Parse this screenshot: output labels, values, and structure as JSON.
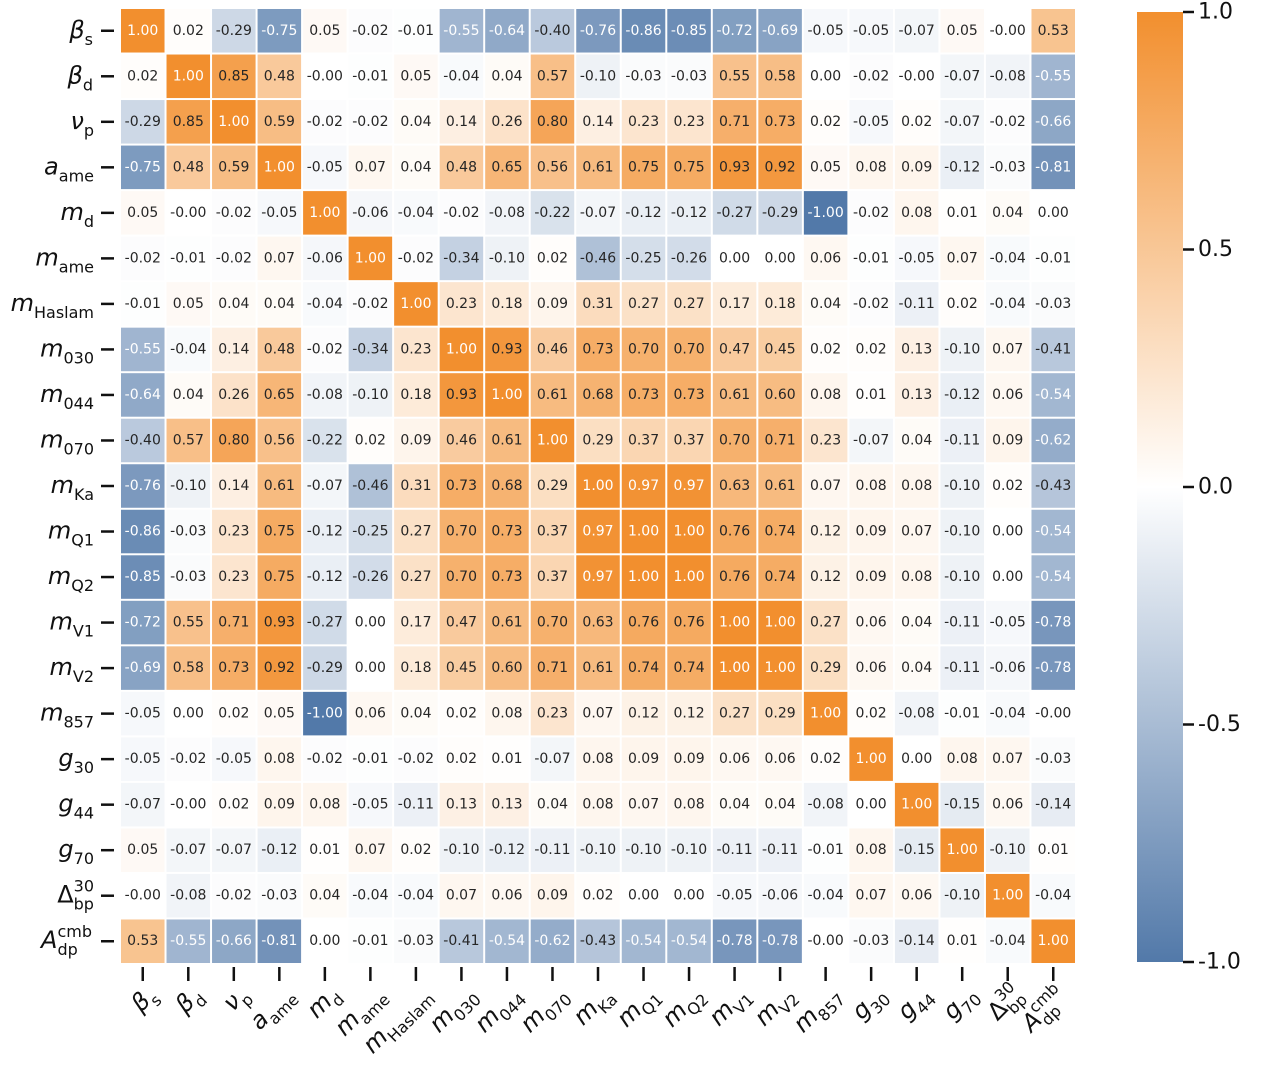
{
  "chart_data": {
    "type": "heatmap",
    "labels": [
      {
        "main": "β",
        "sub": "s"
      },
      {
        "main": "β",
        "sub": "d"
      },
      {
        "main": "ν",
        "sub": "p"
      },
      {
        "main": "a",
        "sub": "ame"
      },
      {
        "main": "m",
        "sub": "d"
      },
      {
        "main": "m",
        "sub": "ame"
      },
      {
        "main": "m",
        "sub": "Haslam"
      },
      {
        "main": "m",
        "sub": "030"
      },
      {
        "main": "m",
        "sub": "044"
      },
      {
        "main": "m",
        "sub": "070"
      },
      {
        "main": "m",
        "sub": "Ka"
      },
      {
        "main": "m",
        "sub": "Q1"
      },
      {
        "main": "m",
        "sub": "Q2"
      },
      {
        "main": "m",
        "sub": "V1"
      },
      {
        "main": "m",
        "sub": "V2"
      },
      {
        "main": "m",
        "sub": "857"
      },
      {
        "main": "g",
        "sub": "30"
      },
      {
        "main": "g",
        "sub": "44"
      },
      {
        "main": "g",
        "sub": "70"
      },
      {
        "main": "Δ",
        "sub": "bp",
        "sup": "30"
      },
      {
        "main": "A",
        "sub": "dp",
        "sup": "cmb"
      }
    ],
    "values": [
      [
        1,
        0.02,
        -0.29,
        -0.75,
        0.05,
        -0.02,
        -0.01,
        -0.55,
        -0.64,
        -0.4,
        -0.76,
        -0.86,
        -0.85,
        -0.72,
        -0.69,
        -0.05,
        -0.05,
        -0.07,
        0.05,
        0,
        0.53
      ],
      [
        0.02,
        1,
        0.85,
        0.48,
        0,
        -0.01,
        0.05,
        -0.04,
        0.04,
        0.57,
        -0.1,
        -0.03,
        -0.03,
        0.55,
        0.58,
        0,
        -0.02,
        0,
        -0.07,
        -0.08,
        -0.55
      ],
      [
        -0.29,
        0.85,
        1,
        0.59,
        -0.02,
        -0.02,
        0.04,
        0.14,
        0.26,
        0.8,
        0.14,
        0.23,
        0.23,
        0.71,
        0.73,
        0.02,
        -0.05,
        0.02,
        -0.07,
        -0.02,
        -0.66
      ],
      [
        -0.75,
        0.48,
        0.59,
        1,
        -0.05,
        0.07,
        0.04,
        0.48,
        0.65,
        0.56,
        0.61,
        0.75,
        0.75,
        0.93,
        0.92,
        0.05,
        0.08,
        0.09,
        -0.12,
        -0.03,
        -0.81
      ],
      [
        0.05,
        0,
        -0.02,
        -0.05,
        1,
        -0.06,
        -0.04,
        -0.02,
        -0.08,
        -0.22,
        -0.07,
        -0.12,
        -0.12,
        -0.27,
        -0.29,
        -1,
        -0.02,
        0.08,
        0.01,
        0.04,
        0
      ],
      [
        -0.02,
        -0.01,
        -0.02,
        0.07,
        -0.06,
        1,
        -0.02,
        -0.34,
        -0.1,
        0.02,
        -0.46,
        -0.25,
        -0.26,
        0,
        0,
        0.06,
        -0.01,
        -0.05,
        0.07,
        -0.04,
        -0.01
      ],
      [
        -0.01,
        0.05,
        0.04,
        0.04,
        -0.04,
        -0.02,
        1,
        0.23,
        0.18,
        0.09,
        0.31,
        0.27,
        0.27,
        0.17,
        0.18,
        0.04,
        -0.02,
        -0.11,
        0.02,
        -0.04,
        -0.03
      ],
      [
        -0.55,
        -0.04,
        0.14,
        0.48,
        -0.02,
        -0.34,
        0.23,
        1,
        0.93,
        0.46,
        0.73,
        0.7,
        0.7,
        0.47,
        0.45,
        0.02,
        0.02,
        0.13,
        -0.1,
        0.07,
        -0.41
      ],
      [
        -0.64,
        0.04,
        0.26,
        0.65,
        -0.08,
        -0.1,
        0.18,
        0.93,
        1,
        0.61,
        0.68,
        0.73,
        0.73,
        0.61,
        0.6,
        0.08,
        0.01,
        0.13,
        -0.12,
        0.06,
        -0.54
      ],
      [
        -0.4,
        0.57,
        0.8,
        0.56,
        -0.22,
        0.02,
        0.09,
        0.46,
        0.61,
        1,
        0.29,
        0.37,
        0.37,
        0.7,
        0.71,
        0.23,
        -0.07,
        0.04,
        -0.11,
        0.09,
        -0.62
      ],
      [
        -0.76,
        -0.1,
        0.14,
        0.61,
        -0.07,
        -0.46,
        0.31,
        0.73,
        0.68,
        0.29,
        1,
        0.97,
        0.97,
        0.63,
        0.61,
        0.07,
        0.08,
        0.08,
        -0.1,
        0.02,
        -0.43
      ],
      [
        -0.86,
        -0.03,
        0.23,
        0.75,
        -0.12,
        -0.25,
        0.27,
        0.7,
        0.73,
        0.37,
        0.97,
        1,
        1,
        0.76,
        0.74,
        0.12,
        0.09,
        0.07,
        -0.1,
        0,
        -0.54
      ],
      [
        -0.85,
        -0.03,
        0.23,
        0.75,
        -0.12,
        -0.26,
        0.27,
        0.7,
        0.73,
        0.37,
        0.97,
        1,
        1,
        0.76,
        0.74,
        0.12,
        0.09,
        0.08,
        -0.1,
        0,
        -0.54
      ],
      [
        -0.72,
        0.55,
        0.71,
        0.93,
        -0.27,
        0,
        0.17,
        0.47,
        0.61,
        0.7,
        0.63,
        0.76,
        0.76,
        1,
        1,
        0.27,
        0.06,
        0.04,
        -0.11,
        -0.05,
        -0.78
      ],
      [
        -0.69,
        0.58,
        0.73,
        0.92,
        -0.29,
        0,
        0.18,
        0.45,
        0.6,
        0.71,
        0.61,
        0.74,
        0.74,
        1,
        1,
        0.29,
        0.06,
        0.04,
        -0.11,
        -0.06,
        -0.78
      ],
      [
        -0.05,
        0,
        0.02,
        0.05,
        -1,
        0.06,
        0.04,
        0.02,
        0.08,
        0.23,
        0.07,
        0.12,
        0.12,
        0.27,
        0.29,
        1,
        0.02,
        -0.08,
        -0.01,
        -0.04,
        0
      ],
      [
        -0.05,
        -0.02,
        -0.05,
        0.08,
        -0.02,
        -0.01,
        -0.02,
        0.02,
        0.01,
        -0.07,
        0.08,
        0.09,
        0.09,
        0.06,
        0.06,
        0.02,
        1,
        0,
        0.08,
        0.07,
        -0.03
      ],
      [
        -0.07,
        0,
        0.02,
        0.09,
        0.08,
        -0.05,
        -0.11,
        0.13,
        0.13,
        0.04,
        0.08,
        0.07,
        0.08,
        0.04,
        0.04,
        -0.08,
        0,
        1,
        -0.15,
        0.06,
        -0.14
      ],
      [
        0.05,
        -0.07,
        -0.07,
        -0.12,
        0.01,
        0.07,
        0.02,
        -0.1,
        -0.12,
        -0.11,
        -0.1,
        -0.1,
        -0.1,
        -0.11,
        -0.11,
        -0.01,
        0.08,
        -0.15,
        1,
        -0.1,
        0.01
      ],
      [
        0,
        -0.08,
        -0.02,
        -0.03,
        0.04,
        -0.04,
        -0.04,
        0.07,
        0.06,
        0.09,
        0.02,
        0,
        0,
        -0.05,
        -0.06,
        -0.04,
        0.07,
        0.06,
        -0.1,
        1,
        -0.04
      ],
      [
        0.53,
        -0.55,
        -0.66,
        -0.81,
        0,
        -0.01,
        -0.03,
        -0.41,
        -0.54,
        -0.62,
        -0.43,
        -0.54,
        -0.54,
        -0.78,
        -0.78,
        0,
        -0.03,
        -0.14,
        0.01,
        -0.04,
        1
      ]
    ],
    "value_labels": [
      [
        "1.00",
        "0.02",
        "-0.29",
        "-0.75",
        "0.05",
        "-0.02",
        "-0.01",
        "-0.55",
        "-0.64",
        "-0.40",
        "-0.76",
        "-0.86",
        "-0.85",
        "-0.72",
        "-0.69",
        "-0.05",
        "-0.05",
        "-0.07",
        "0.05",
        "-0.00",
        "0.53"
      ],
      [
        "0.02",
        "1.00",
        "0.85",
        "0.48",
        "-0.00",
        "-0.01",
        "0.05",
        "-0.04",
        "0.04",
        "0.57",
        "-0.10",
        "-0.03",
        "-0.03",
        "0.55",
        "0.58",
        "0.00",
        "-0.02",
        "-0.00",
        "-0.07",
        "-0.08",
        "-0.55"
      ],
      [
        "-0.29",
        "0.85",
        "1.00",
        "0.59",
        "-0.02",
        "-0.02",
        "0.04",
        "0.14",
        "0.26",
        "0.80",
        "0.14",
        "0.23",
        "0.23",
        "0.71",
        "0.73",
        "0.02",
        "-0.05",
        "0.02",
        "-0.07",
        "-0.02",
        "-0.66"
      ],
      [
        "-0.75",
        "0.48",
        "0.59",
        "1.00",
        "-0.05",
        "0.07",
        "0.04",
        "0.48",
        "0.65",
        "0.56",
        "0.61",
        "0.75",
        "0.75",
        "0.93",
        "0.92",
        "0.05",
        "0.08",
        "0.09",
        "-0.12",
        "-0.03",
        "-0.81"
      ],
      [
        "0.05",
        "-0.00",
        "-0.02",
        "-0.05",
        "1.00",
        "-0.06",
        "-0.04",
        "-0.02",
        "-0.08",
        "-0.22",
        "-0.07",
        "-0.12",
        "-0.12",
        "-0.27",
        "-0.29",
        "-1.00",
        "-0.02",
        "0.08",
        "0.01",
        "0.04",
        "0.00"
      ],
      [
        "-0.02",
        "-0.01",
        "-0.02",
        "0.07",
        "-0.06",
        "1.00",
        "-0.02",
        "-0.34",
        "-0.10",
        "0.02",
        "-0.46",
        "-0.25",
        "-0.26",
        "0.00",
        "0.00",
        "0.06",
        "-0.01",
        "-0.05",
        "0.07",
        "-0.04",
        "-0.01"
      ],
      [
        "-0.01",
        "0.05",
        "0.04",
        "0.04",
        "-0.04",
        "-0.02",
        "1.00",
        "0.23",
        "0.18",
        "0.09",
        "0.31",
        "0.27",
        "0.27",
        "0.17",
        "0.18",
        "0.04",
        "-0.02",
        "-0.11",
        "0.02",
        "-0.04",
        "-0.03"
      ],
      [
        "-0.55",
        "-0.04",
        "0.14",
        "0.48",
        "-0.02",
        "-0.34",
        "0.23",
        "1.00",
        "0.93",
        "0.46",
        "0.73",
        "0.70",
        "0.70",
        "0.47",
        "0.45",
        "0.02",
        "0.02",
        "0.13",
        "-0.10",
        "0.07",
        "-0.41"
      ],
      [
        "-0.64",
        "0.04",
        "0.26",
        "0.65",
        "-0.08",
        "-0.10",
        "0.18",
        "0.93",
        "1.00",
        "0.61",
        "0.68",
        "0.73",
        "0.73",
        "0.61",
        "0.60",
        "0.08",
        "0.01",
        "0.13",
        "-0.12",
        "0.06",
        "-0.54"
      ],
      [
        "-0.40",
        "0.57",
        "0.80",
        "0.56",
        "-0.22",
        "0.02",
        "0.09",
        "0.46",
        "0.61",
        "1.00",
        "0.29",
        "0.37",
        "0.37",
        "0.70",
        "0.71",
        "0.23",
        "-0.07",
        "0.04",
        "-0.11",
        "0.09",
        "-0.62"
      ],
      [
        "-0.76",
        "-0.10",
        "0.14",
        "0.61",
        "-0.07",
        "-0.46",
        "0.31",
        "0.73",
        "0.68",
        "0.29",
        "1.00",
        "0.97",
        "0.97",
        "0.63",
        "0.61",
        "0.07",
        "0.08",
        "0.08",
        "-0.10",
        "0.02",
        "-0.43"
      ],
      [
        "-0.86",
        "-0.03",
        "0.23",
        "0.75",
        "-0.12",
        "-0.25",
        "0.27",
        "0.70",
        "0.73",
        "0.37",
        "0.97",
        "1.00",
        "1.00",
        "0.76",
        "0.74",
        "0.12",
        "0.09",
        "0.07",
        "-0.10",
        "0.00",
        "-0.54"
      ],
      [
        "-0.85",
        "-0.03",
        "0.23",
        "0.75",
        "-0.12",
        "-0.26",
        "0.27",
        "0.70",
        "0.73",
        "0.37",
        "0.97",
        "1.00",
        "1.00",
        "0.76",
        "0.74",
        "0.12",
        "0.09",
        "0.08",
        "-0.10",
        "0.00",
        "-0.54"
      ],
      [
        "-0.72",
        "0.55",
        "0.71",
        "0.93",
        "-0.27",
        "0.00",
        "0.17",
        "0.47",
        "0.61",
        "0.70",
        "0.63",
        "0.76",
        "0.76",
        "1.00",
        "1.00",
        "0.27",
        "0.06",
        "0.04",
        "-0.11",
        "-0.05",
        "-0.78"
      ],
      [
        "-0.69",
        "0.58",
        "0.73",
        "0.92",
        "-0.29",
        "0.00",
        "0.18",
        "0.45",
        "0.60",
        "0.71",
        "0.61",
        "0.74",
        "0.74",
        "1.00",
        "1.00",
        "0.29",
        "0.06",
        "0.04",
        "-0.11",
        "-0.06",
        "-0.78"
      ],
      [
        "-0.05",
        "0.00",
        "0.02",
        "0.05",
        "-1.00",
        "0.06",
        "0.04",
        "0.02",
        "0.08",
        "0.23",
        "0.07",
        "0.12",
        "0.12",
        "0.27",
        "0.29",
        "1.00",
        "0.02",
        "-0.08",
        "-0.01",
        "-0.04",
        "-0.00"
      ],
      [
        "-0.05",
        "-0.02",
        "-0.05",
        "0.08",
        "-0.02",
        "-0.01",
        "-0.02",
        "0.02",
        "0.01",
        "-0.07",
        "0.08",
        "0.09",
        "0.09",
        "0.06",
        "0.06",
        "0.02",
        "1.00",
        "0.00",
        "0.08",
        "0.07",
        "-0.03"
      ],
      [
        "-0.07",
        "-0.00",
        "0.02",
        "0.09",
        "0.08",
        "-0.05",
        "-0.11",
        "0.13",
        "0.13",
        "0.04",
        "0.08",
        "0.07",
        "0.08",
        "0.04",
        "0.04",
        "-0.08",
        "0.00",
        "1.00",
        "-0.15",
        "0.06",
        "-0.14"
      ],
      [
        "0.05",
        "-0.07",
        "-0.07",
        "-0.12",
        "0.01",
        "0.07",
        "0.02",
        "-0.10",
        "-0.12",
        "-0.11",
        "-0.10",
        "-0.10",
        "-0.10",
        "-0.11",
        "-0.11",
        "-0.01",
        "0.08",
        "-0.15",
        "1.00",
        "-0.10",
        "0.01"
      ],
      [
        "-0.00",
        "-0.08",
        "-0.02",
        "-0.03",
        "0.04",
        "-0.04",
        "-0.04",
        "0.07",
        "0.06",
        "0.09",
        "0.02",
        "0.00",
        "0.00",
        "-0.05",
        "-0.06",
        "-0.04",
        "0.07",
        "0.06",
        "-0.10",
        "1.00",
        "-0.04"
      ],
      [
        "0.53",
        "-0.55",
        "-0.66",
        "-0.81",
        "0.00",
        "-0.01",
        "-0.03",
        "-0.41",
        "-0.54",
        "-0.62",
        "-0.43",
        "-0.54",
        "-0.54",
        "-0.78",
        "-0.78",
        "-0.00",
        "-0.03",
        "-0.14",
        "0.01",
        "-0.04",
        "1.00"
      ]
    ],
    "colormap": {
      "low": "#5279a9",
      "mid": "#ffffff",
      "high": "#f28f2e"
    },
    "clim": [
      -1,
      1
    ],
    "cticks": [
      {
        "value": -1,
        "label": "-1.0"
      },
      {
        "value": -0.5,
        "label": "-0.5"
      },
      {
        "value": 0,
        "label": "0.0"
      },
      {
        "value": 0.5,
        "label": "0.5"
      },
      {
        "value": 1,
        "label": "1.0"
      }
    ]
  }
}
